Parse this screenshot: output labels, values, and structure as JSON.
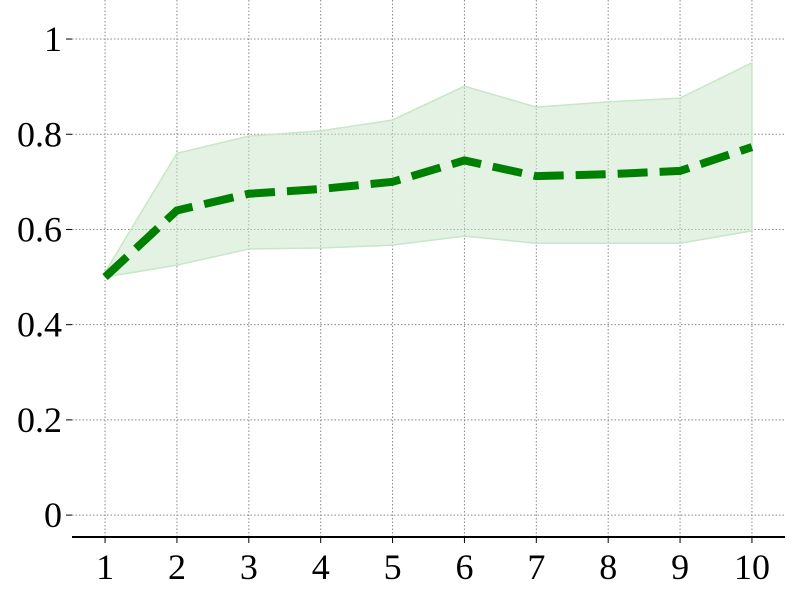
{
  "chart_data": {
    "type": "line",
    "x": [
      1,
      2,
      3,
      4,
      5,
      6,
      7,
      8,
      9,
      10
    ],
    "values": [
      0.5,
      0.64,
      0.675,
      0.685,
      0.7,
      0.745,
      0.712,
      0.716,
      0.723,
      0.773
    ],
    "upper": [
      0.51,
      0.76,
      0.796,
      0.807,
      0.83,
      0.901,
      0.857,
      0.868,
      0.876,
      0.95
    ],
    "lower": [
      0.5,
      0.525,
      0.559,
      0.561,
      0.567,
      0.586,
      0.571,
      0.571,
      0.571,
      0.597
    ],
    "color": "#008000",
    "band_color": "#c8e6c8",
    "xlim": [
      0.54,
      10.46
    ],
    "ylim": [
      -0.046,
      1.082
    ],
    "xticks": [
      1,
      2,
      3,
      4,
      5,
      6,
      7,
      8,
      9,
      10
    ],
    "yticks": [
      0,
      0.2,
      0.4,
      0.6,
      0.8,
      1
    ],
    "grid": true
  }
}
